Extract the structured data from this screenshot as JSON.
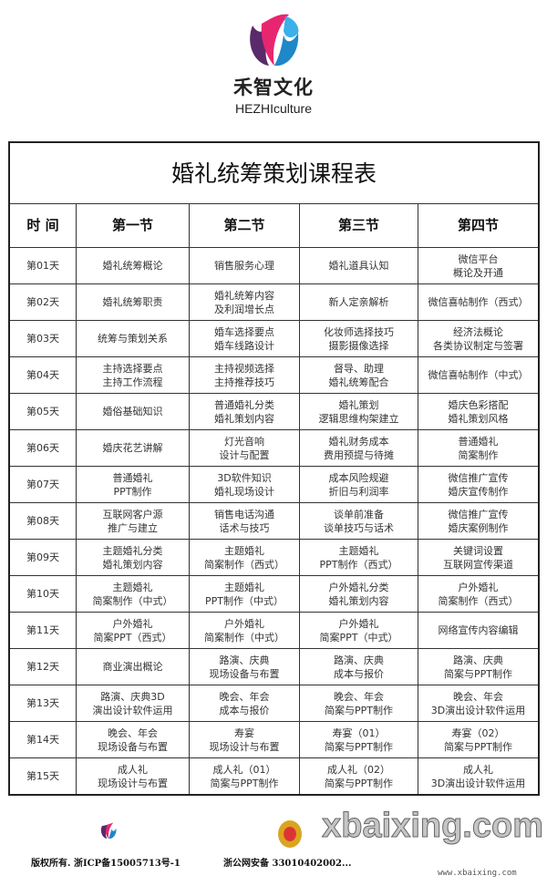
{
  "brand": {
    "name_cn": "禾智文化",
    "name_en": "HEZHIculture",
    "colors": {
      "pink": "#e8266f",
      "blue": "#1e88c8",
      "purple": "#5a2a6a"
    }
  },
  "table": {
    "title": "婚礼统筹策划课程表",
    "headers": [
      "时  间",
      "第一节",
      "第二节",
      "第三节",
      "第四节"
    ],
    "rows": [
      {
        "day": "第01天",
        "cells": [
          [
            "婚礼统筹概论"
          ],
          [
            "销售服务心理"
          ],
          [
            "婚礼道具认知"
          ],
          [
            "微信平台",
            "概论及开通"
          ]
        ]
      },
      {
        "day": "第02天",
        "cells": [
          [
            "婚礼统筹职责"
          ],
          [
            "婚礼统筹内容",
            "及利润增长点"
          ],
          [
            "新人定亲解析"
          ],
          [
            "微信喜帖制作（西式）"
          ]
        ]
      },
      {
        "day": "第03天",
        "cells": [
          [
            "统筹与策划关系"
          ],
          [
            "婚车选择要点",
            "婚车线路设计"
          ],
          [
            "化妆师选择技巧",
            "摄影摄像选择"
          ],
          [
            "经济法概论",
            "各类协议制定与签署"
          ]
        ]
      },
      {
        "day": "第04天",
        "cells": [
          [
            "主持选择要点",
            "主持工作流程"
          ],
          [
            "主持视频选择",
            "主持推荐技巧"
          ],
          [
            "督导、助理",
            "婚礼统筹配合"
          ],
          [
            "微信喜帖制作（中式）"
          ]
        ]
      },
      {
        "day": "第05天",
        "cells": [
          [
            "婚俗基础知识"
          ],
          [
            "普通婚礼分类",
            "婚礼策划内容"
          ],
          [
            "婚礼策划",
            "逻辑思维构架建立"
          ],
          [
            "婚庆色彩搭配",
            "婚礼策划风格"
          ]
        ]
      },
      {
        "day": "第06天",
        "cells": [
          [
            "婚庆花艺讲解"
          ],
          [
            "灯光音响",
            "设计与配置"
          ],
          [
            "婚礼财务成本",
            "费用预提与待摊"
          ],
          [
            "普通婚礼",
            "简案制作"
          ]
        ]
      },
      {
        "day": "第07天",
        "cells": [
          [
            "普通婚礼",
            "PPT制作"
          ],
          [
            "3D软件知识",
            "婚礼现场设计"
          ],
          [
            "成本风险规避",
            "折旧与利润率"
          ],
          [
            "微信推广宣传",
            "婚庆宣传制作"
          ]
        ]
      },
      {
        "day": "第08天",
        "cells": [
          [
            "互联网客户源",
            "推广与建立"
          ],
          [
            "销售电话沟通",
            "话术与技巧"
          ],
          [
            "谈单前准备",
            "谈单技巧与话术"
          ],
          [
            "微信推广宣传",
            "婚庆案例制作"
          ]
        ]
      },
      {
        "day": "第09天",
        "cells": [
          [
            "主题婚礼分类",
            "婚礼策划内容"
          ],
          [
            "主题婚礼",
            "简案制作（西式）"
          ],
          [
            "主题婚礼",
            "PPT制作（西式）"
          ],
          [
            "关键词设置",
            "互联网宣传渠道"
          ]
        ]
      },
      {
        "day": "第10天",
        "cells": [
          [
            "主题婚礼",
            "简案制作（中式）"
          ],
          [
            "主题婚礼",
            "PPT制作（中式）"
          ],
          [
            "户外婚礼分类",
            "婚礼策划内容"
          ],
          [
            "户外婚礼",
            "简案制作（西式）"
          ]
        ]
      },
      {
        "day": "第11天",
        "cells": [
          [
            "户外婚礼",
            "简案PPT（西式）"
          ],
          [
            "户外婚礼",
            "简案制作（中式）"
          ],
          [
            "户外婚礼",
            "简案PPT（中式）"
          ],
          [
            "网络宣传内容编辑"
          ]
        ]
      },
      {
        "day": "第12天",
        "cells": [
          [
            "商业演出概论"
          ],
          [
            "路演、庆典",
            "现场设备与布置"
          ],
          [
            "路演、庆典",
            "成本与报价"
          ],
          [
            "路演、庆典",
            "简案与PPT制作"
          ]
        ]
      },
      {
        "day": "第13天",
        "cells": [
          [
            "路演、庆典3D",
            "演出设计软件运用"
          ],
          [
            "晚会、年会",
            "成本与报价"
          ],
          [
            "晚会、年会",
            "简案与PPT制作"
          ],
          [
            "晚会、年会",
            "3D演出设计软件运用"
          ]
        ]
      },
      {
        "day": "第14天",
        "cells": [
          [
            "晚会、年会",
            "现场设备与布置"
          ],
          [
            "寿宴",
            "现场设计与布置"
          ],
          [
            "寿宴（01）",
            "简案与PPT制作"
          ],
          [
            "寿宴（02）",
            "简案与PPT制作"
          ]
        ]
      },
      {
        "day": "第15天",
        "cells": [
          [
            "成人礼",
            "现场设计与布置"
          ],
          [
            "成人礼（01）",
            "简案与PPT制作"
          ],
          [
            "成人礼（02）",
            "简案与PPT制作"
          ],
          [
            "成人礼",
            "3D演出设计软件运用"
          ]
        ]
      }
    ]
  },
  "footer": {
    "copyright": "版权所有. 浙ICP备15005713号-1",
    "police": "浙公网安备 33010402002...",
    "watermark": "xbaixing.com",
    "watermark_url": "www.xbaixing.com"
  }
}
